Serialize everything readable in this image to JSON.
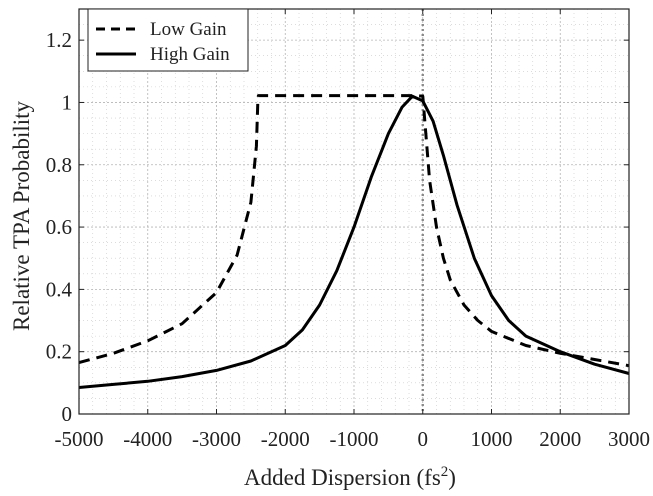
{
  "chart_data": {
    "type": "line",
    "xlabel": "Added Dispersion (fs",
    "xlabel_superscript": "2",
    "xlabel_suffix": ")",
    "ylabel": "Relative TPA Probability",
    "xlim": [
      -5000,
      3000
    ],
    "ylim": [
      0,
      1.3
    ],
    "x_ticks": [
      -5000,
      -4000,
      -3000,
      -2000,
      -1000,
      0,
      1000,
      2000,
      3000
    ],
    "x_tick_labels": [
      "-5000",
      "-4000",
      "-3000",
      "-2000",
      "-1000",
      "0",
      "1000",
      "2000",
      "3000"
    ],
    "y_ticks": [
      0,
      0.2,
      0.4,
      0.6,
      0.8,
      1,
      1.2
    ],
    "y_tick_labels": [
      "0",
      "0.2",
      "0.4",
      "0.6",
      "0.8",
      "1",
      "1.2"
    ],
    "grid": true,
    "minor_grid": true,
    "legend_position": "top-left",
    "vertical_reference_line_x": 0,
    "series": [
      {
        "name": "Low Gain",
        "style": "dashed",
        "color": "#000000",
        "x": [
          -5000,
          -4500,
          -4000,
          -3500,
          -3000,
          -2700,
          -2500,
          -2420,
          -2400,
          -2390,
          -2000,
          -1500,
          -1000,
          -500,
          -100,
          0,
          100,
          200,
          300,
          400,
          600,
          800,
          1000,
          1500,
          2000,
          2500,
          3000
        ],
        "y": [
          0.165,
          0.195,
          0.235,
          0.29,
          0.39,
          0.51,
          0.68,
          0.86,
          1.0,
          1.022,
          1.022,
          1.022,
          1.022,
          1.022,
          1.022,
          1.02,
          0.75,
          0.6,
          0.5,
          0.43,
          0.35,
          0.3,
          0.265,
          0.22,
          0.195,
          0.175,
          0.155
        ]
      },
      {
        "name": "High Gain",
        "style": "solid",
        "color": "#000000",
        "x": [
          -5000,
          -4500,
          -4000,
          -3500,
          -3000,
          -2500,
          -2000,
          -1750,
          -1500,
          -1250,
          -1000,
          -750,
          -500,
          -300,
          -150,
          0,
          150,
          300,
          500,
          750,
          1000,
          1250,
          1500,
          2000,
          2500,
          3000
        ],
        "y": [
          0.085,
          0.095,
          0.105,
          0.12,
          0.14,
          0.17,
          0.22,
          0.27,
          0.35,
          0.46,
          0.6,
          0.76,
          0.9,
          0.985,
          1.02,
          1.005,
          0.94,
          0.83,
          0.67,
          0.5,
          0.38,
          0.3,
          0.25,
          0.2,
          0.16,
          0.13
        ]
      }
    ]
  }
}
